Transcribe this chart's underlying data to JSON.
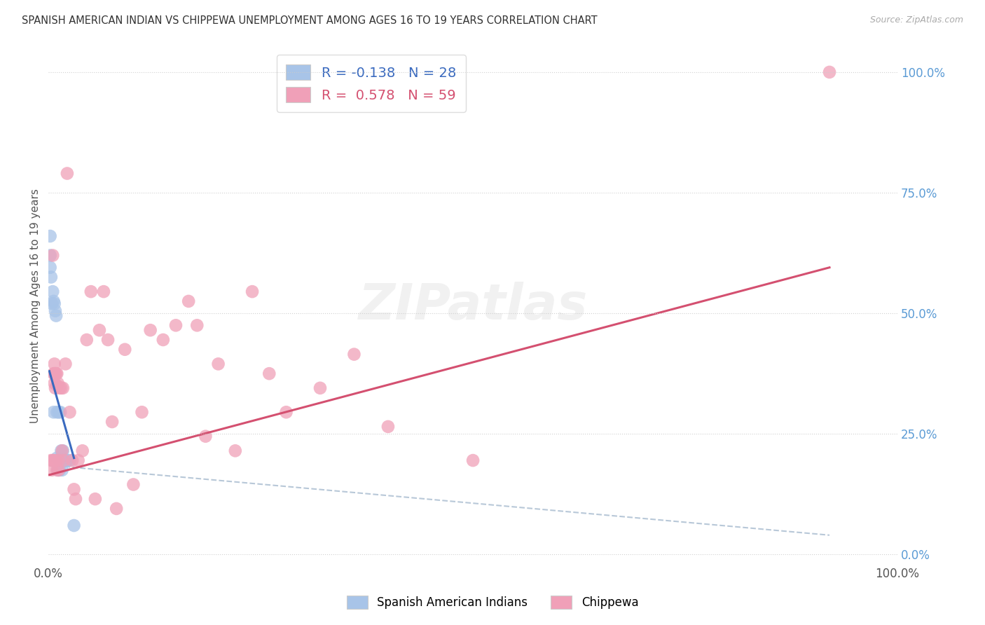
{
  "title": "SPANISH AMERICAN INDIAN VS CHIPPEWA UNEMPLOYMENT AMONG AGES 16 TO 19 YEARS CORRELATION CHART",
  "source": "Source: ZipAtlas.com",
  "ylabel": "Unemployment Among Ages 16 to 19 years",
  "right_yticks": [
    "0.0%",
    "25.0%",
    "50.0%",
    "75.0%",
    "100.0%"
  ],
  "right_ytick_vals": [
    0.0,
    0.25,
    0.5,
    0.75,
    1.0
  ],
  "color_blue": "#a8c4e8",
  "color_pink": "#f0a0b8",
  "line_blue": "#3a6abf",
  "line_pink": "#d45070",
  "line_gray": "#b8c8d8",
  "blue_scatter_x": [
    0.002,
    0.002,
    0.002,
    0.003,
    0.004,
    0.005,
    0.006,
    0.006,
    0.007,
    0.008,
    0.009,
    0.01,
    0.01,
    0.011,
    0.012,
    0.012,
    0.013,
    0.013,
    0.014,
    0.015,
    0.015,
    0.016,
    0.017,
    0.018,
    0.02,
    0.022,
    0.025,
    0.03
  ],
  "blue_scatter_y": [
    0.66,
    0.62,
    0.595,
    0.575,
    0.52,
    0.545,
    0.525,
    0.295,
    0.52,
    0.505,
    0.495,
    0.295,
    0.2,
    0.175,
    0.295,
    0.175,
    0.195,
    0.175,
    0.295,
    0.215,
    0.195,
    0.175,
    0.215,
    0.195,
    0.195,
    0.195,
    0.195,
    0.06
  ],
  "pink_scatter_x": [
    0.003,
    0.004,
    0.005,
    0.005,
    0.006,
    0.006,
    0.007,
    0.007,
    0.007,
    0.008,
    0.008,
    0.009,
    0.009,
    0.01,
    0.01,
    0.01,
    0.011,
    0.012,
    0.012,
    0.013,
    0.015,
    0.016,
    0.017,
    0.018,
    0.02,
    0.022,
    0.025,
    0.028,
    0.03,
    0.032,
    0.035,
    0.04,
    0.045,
    0.05,
    0.055,
    0.06,
    0.065,
    0.07,
    0.075,
    0.08,
    0.09,
    0.1,
    0.11,
    0.12,
    0.135,
    0.15,
    0.165,
    0.175,
    0.185,
    0.2,
    0.22,
    0.24,
    0.26,
    0.28,
    0.32,
    0.36,
    0.4,
    0.5,
    0.92
  ],
  "pink_scatter_y": [
    0.195,
    0.175,
    0.195,
    0.62,
    0.195,
    0.375,
    0.395,
    0.375,
    0.355,
    0.375,
    0.345,
    0.375,
    0.195,
    0.375,
    0.35,
    0.175,
    0.355,
    0.195,
    0.175,
    0.345,
    0.345,
    0.215,
    0.345,
    0.195,
    0.395,
    0.79,
    0.295,
    0.195,
    0.135,
    0.115,
    0.195,
    0.215,
    0.445,
    0.545,
    0.115,
    0.465,
    0.545,
    0.445,
    0.275,
    0.095,
    0.425,
    0.145,
    0.295,
    0.465,
    0.445,
    0.475,
    0.525,
    0.475,
    0.245,
    0.395,
    0.215,
    0.545,
    0.375,
    0.295,
    0.345,
    0.415,
    0.265,
    0.195,
    1.0
  ],
  "blue_line_x": [
    0.001,
    0.03
  ],
  "blue_line_y": [
    0.38,
    0.2
  ],
  "pink_line_x": [
    0.001,
    0.92
  ],
  "pink_line_y": [
    0.165,
    0.595
  ],
  "gray_line_x": [
    0.001,
    0.92
  ],
  "gray_line_y": [
    0.185,
    0.04
  ],
  "xlim": [
    0.0,
    1.0
  ],
  "ylim": [
    -0.02,
    1.05
  ],
  "xtick_positions": [
    0.0,
    0.5,
    1.0
  ],
  "xtick_labels": [
    "0.0%",
    "",
    "100.0%"
  ]
}
